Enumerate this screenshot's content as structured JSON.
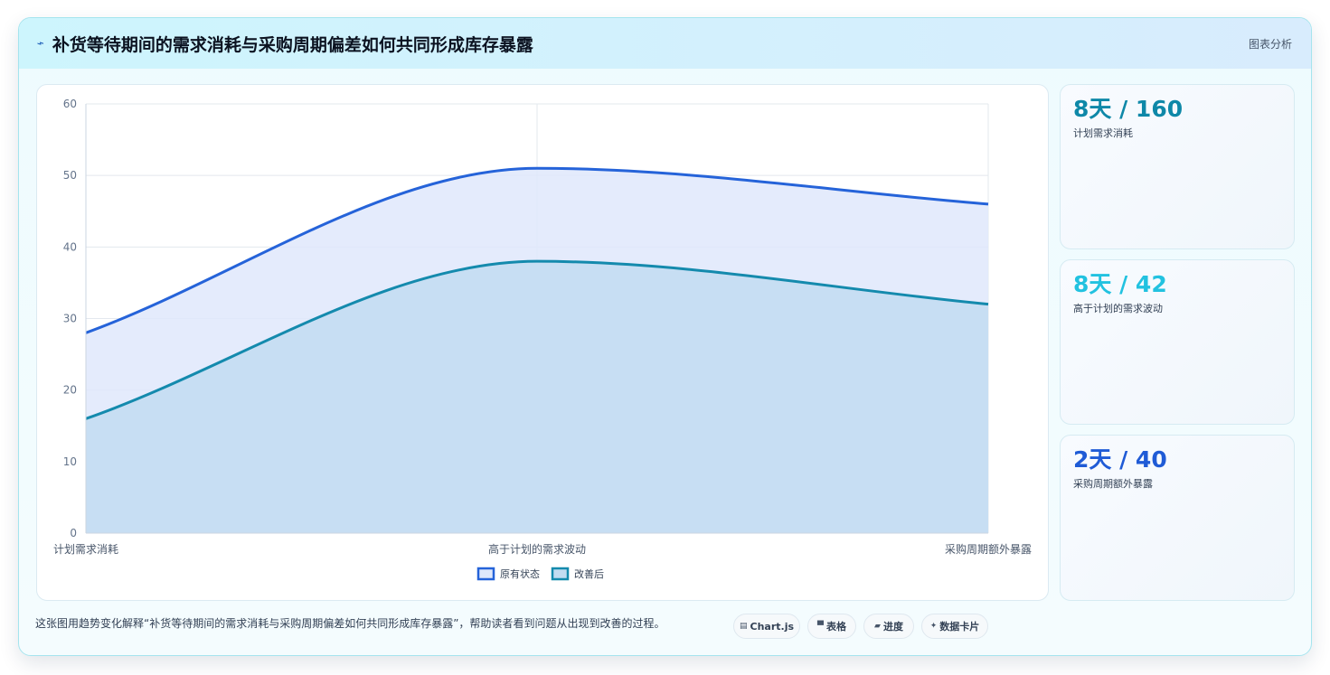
{
  "header": {
    "title": "补货等待期间的需求消耗与采购周期偏差如何共同形成库存暴露",
    "right_label": "图表分析"
  },
  "chart_data": {
    "type": "area",
    "categories": [
      "计划需求消耗",
      "高于计划的需求波动",
      "采购周期额外暴露"
    ],
    "series": [
      {
        "name": "原有状态",
        "values": [
          28,
          51,
          46
        ],
        "color": "#2563d9",
        "fill": "#dfe8fb"
      },
      {
        "name": "改善后",
        "values": [
          16,
          38,
          32
        ],
        "color": "#148aad",
        "fill": "#c2dcf1"
      }
    ],
    "ylim": [
      0,
      60
    ],
    "yticks": [
      "0",
      "10",
      "20",
      "30",
      "40",
      "50",
      "60"
    ],
    "grid": true,
    "legend": "bottom"
  },
  "stats": [
    {
      "value": "8天 / 160",
      "label": "计划需求消耗",
      "color": "#0e88a8"
    },
    {
      "value": "8天 / 42",
      "label": "高于计划的需求波动",
      "color": "#22c2e0"
    },
    {
      "value": "2天 / 40",
      "label": "采购周期额外暴露",
      "color": "#1f5bd6"
    }
  ],
  "footer": {
    "text": "这张图用趋势变化解释“补货等待期间的需求消耗与采购周期偏差如何共同形成库存暴露”，帮助读者看到问题从出现到改善的过程。",
    "chips": [
      {
        "icon": "▤",
        "icon_name": "chart-icon",
        "label": "Chart.js"
      },
      {
        "icon": "▀",
        "icon_name": "table-icon",
        "label": "表格"
      },
      {
        "icon": "▰",
        "icon_name": "progress-icon",
        "label": "进度"
      },
      {
        "icon": "✦",
        "icon_name": "sparkle-icon",
        "label": "数据卡片"
      }
    ]
  }
}
